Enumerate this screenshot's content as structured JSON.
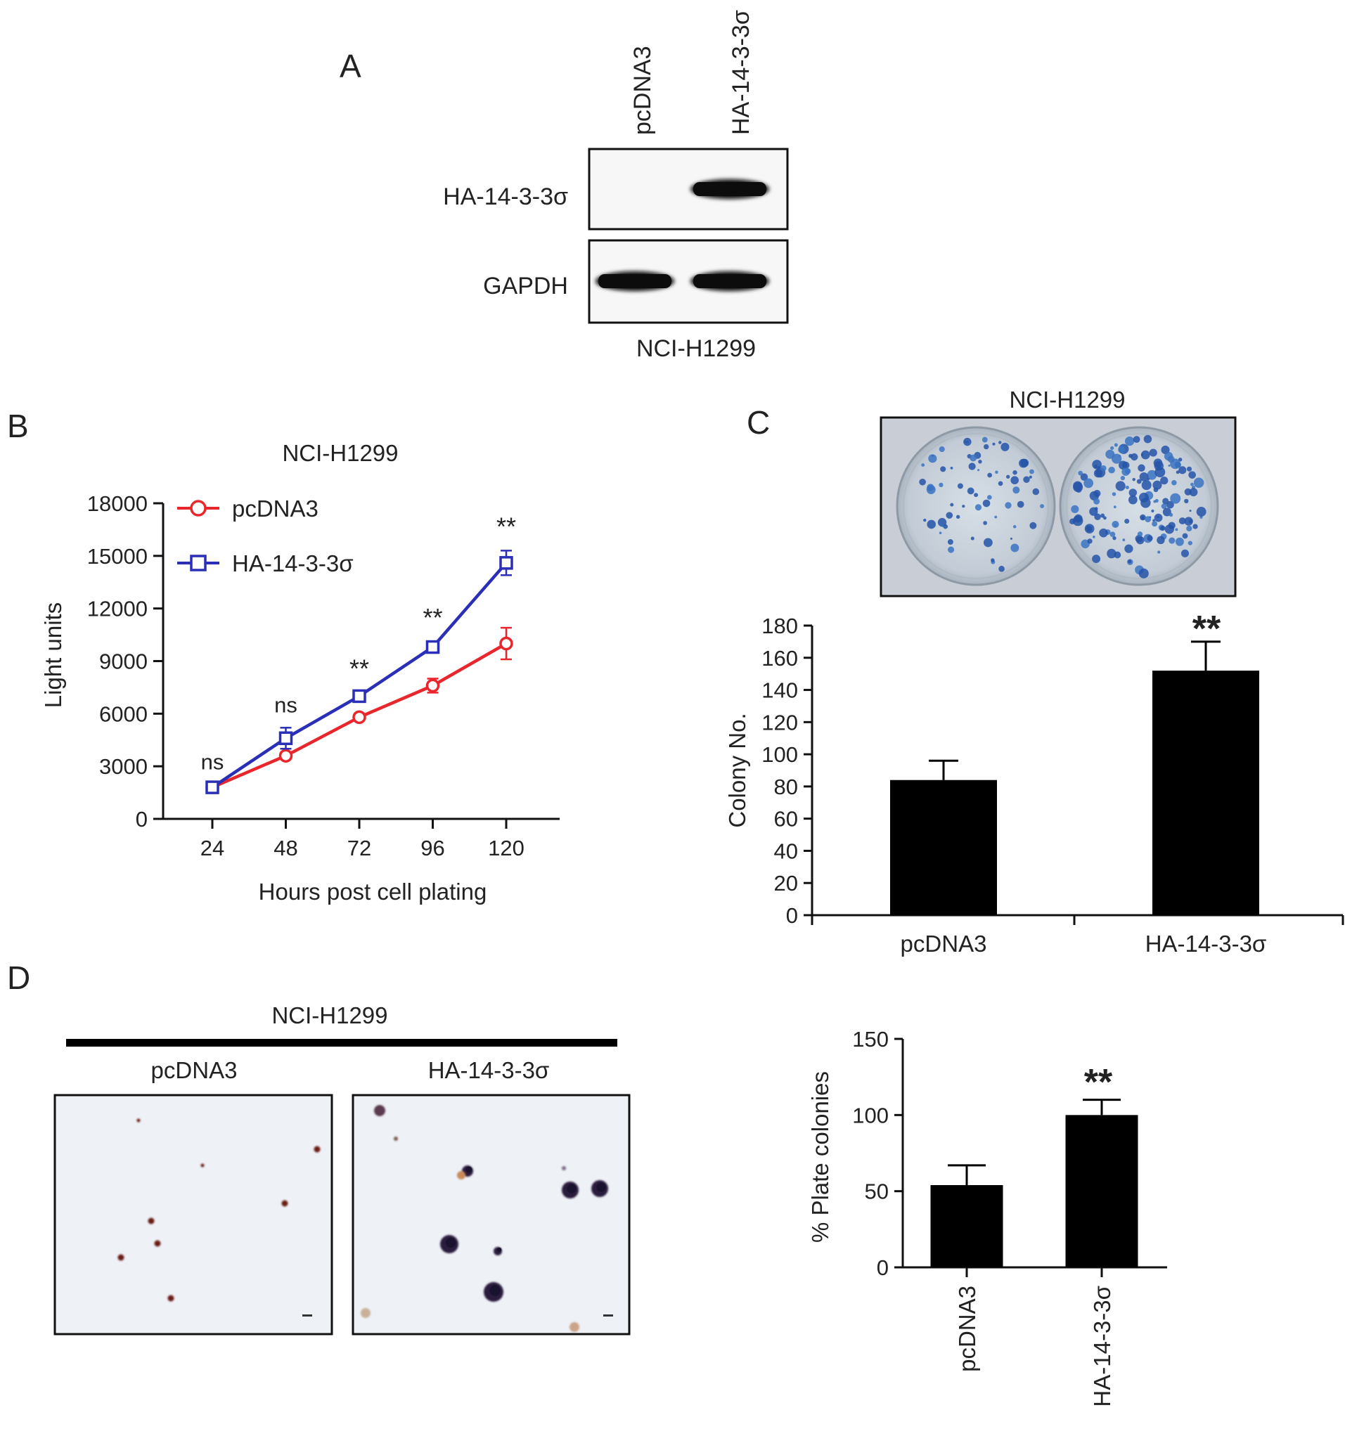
{
  "panelA": {
    "letter": "A",
    "lanes": [
      "pcDNA3",
      "HA-14-3-3σ"
    ],
    "rows": [
      "HA-14-3-3σ",
      "GAPDH"
    ],
    "cell_line": "NCI-H1299",
    "bands": [
      {
        "row": "HA-14-3-3σ",
        "present": [
          false,
          true
        ]
      },
      {
        "row": "GAPDH",
        "present": [
          true,
          true
        ]
      }
    ]
  },
  "panelB": {
    "letter": "B",
    "legend": [
      "pcDNA3",
      "HA-14-3-3σ"
    ],
    "annotations": [
      "ns",
      "ns",
      "**",
      "**",
      "**"
    ]
  },
  "panelC": {
    "letter": "C",
    "photo_title": "NCI-H1299",
    "dishes": [
      {
        "label": "pcDNA3",
        "colony_density": 70
      },
      {
        "label": "HA-14-3-3σ",
        "colony_density": 150
      }
    ],
    "significance": "**"
  },
  "panelD": {
    "letter": "D",
    "title": "NCI-H1299",
    "image_labels": [
      "pcDNA3",
      "HA-14-3-3σ"
    ],
    "significance": "**"
  },
  "chart_data": [
    {
      "id": "B",
      "type": "line",
      "title": "NCI-H1299",
      "xlabel": "Hours post cell plating",
      "ylabel": "Light units",
      "x": [
        24,
        48,
        72,
        96,
        120
      ],
      "xticks": [
        "24",
        "48",
        "72",
        "96",
        "120"
      ],
      "yticks": [
        "0",
        "3000",
        "6000",
        "9000",
        "12000",
        "15000",
        "18000"
      ],
      "ylim": [
        0,
        18000
      ],
      "grid": false,
      "legend_position": "top-left",
      "series": [
        {
          "name": "pcDNA3",
          "color": "#e8262b",
          "marker": "circle",
          "values": [
            1800,
            3600,
            5800,
            7600,
            10000
          ],
          "errors": [
            150,
            200,
            150,
            400,
            900
          ]
        },
        {
          "name": "HA-14-3-3σ",
          "color": "#2b2fb8",
          "marker": "square",
          "values": [
            1800,
            4600,
            7000,
            9800,
            14600
          ],
          "errors": [
            150,
            600,
            200,
            300,
            700
          ]
        }
      ]
    },
    {
      "id": "C",
      "type": "bar",
      "xlabel": "",
      "ylabel": "Colony No.",
      "categories": [
        "pcDNA3",
        "HA-14-3-3σ"
      ],
      "values": [
        84,
        152
      ],
      "errors": [
        12,
        18
      ],
      "yticks": [
        "0",
        "20",
        "40",
        "60",
        "80",
        "100",
        "120",
        "140",
        "160",
        "180"
      ],
      "ylim": [
        0,
        180
      ],
      "grid": false
    },
    {
      "id": "D",
      "type": "bar",
      "xlabel": "",
      "ylabel": "% Plate colonies",
      "categories": [
        "pcDNA3",
        "HA-14-3-3σ"
      ],
      "values": [
        54,
        100
      ],
      "errors": [
        13,
        10
      ],
      "yticks": [
        "0",
        "50",
        "100",
        "150"
      ],
      "ylim": [
        0,
        150
      ],
      "grid": false
    }
  ]
}
